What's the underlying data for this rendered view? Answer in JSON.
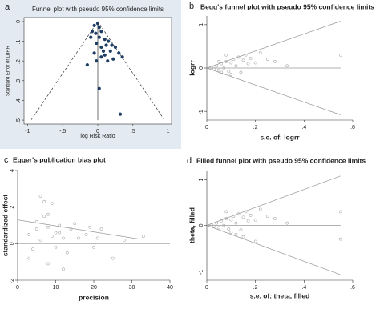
{
  "chart_data": [
    {
      "type": "scatter",
      "panel": "a",
      "title": "Funnel plot with pseudo 95% confidence limits",
      "x_label": "log Risk Ratio",
      "y_label": "Standard Error of LnRR",
      "color": "#1f3d63",
      "filled": true,
      "frame": true,
      "xlim": [
        -1.05,
        1.05
      ],
      "ylim": [
        0.52,
        -0.02
      ],
      "xticks": [
        -1,
        {
          "value": -0.5,
          "label": "-.5"
        },
        0,
        {
          "value": 0.5,
          "label": ".5"
        },
        1
      ],
      "yticks": [
        0,
        {
          "value": 0.1,
          "label": ".1"
        },
        {
          "value": 0.2,
          "label": ".2"
        },
        {
          "value": 0.3,
          "label": ".3"
        },
        {
          "value": 0.4,
          "label": ".4"
        },
        {
          "value": 0.5,
          "label": ".5"
        }
      ],
      "x": [
        -0.05,
        0,
        0.02,
        -0.08,
        -0.03,
        0.05,
        -0.1,
        0.02,
        0.1,
        0.15,
        0.12,
        0.2,
        0.25,
        -0.02,
        0.05,
        0.08,
        0.18,
        0.3,
        0.35,
        0.05,
        0.1,
        -0.15,
        0.22,
        -0.05,
        0.02,
        0.32,
        -0.02,
        0.14
      ],
      "y": [
        0.02,
        0.01,
        0.03,
        0.05,
        0.06,
        0.05,
        0.08,
        0.08,
        0.09,
        0.1,
        0.12,
        0.12,
        0.13,
        0.11,
        0.13,
        0.15,
        0.15,
        0.16,
        0.18,
        0.18,
        0.17,
        0.22,
        0.19,
        0.16,
        0.34,
        0.47,
        0.2,
        0.2
      ],
      "lines": [
        {
          "x": [
            0,
            -0.95
          ],
          "y": [
            0,
            0.5
          ],
          "dash": true
        },
        {
          "x": [
            0,
            0.95
          ],
          "y": [
            0,
            0.5
          ],
          "dash": true
        },
        {
          "x": [
            0,
            0
          ],
          "y": [
            0,
            0.5
          ],
          "dash": false
        }
      ]
    },
    {
      "type": "scatter",
      "panel": "b",
      "title": "Begg's funnel plot with pseudo 95% confidence limits",
      "x_label": "s.e. of: logrr",
      "y_label": "logrr",
      "color": "#aaaaaa",
      "filled": false,
      "frame": false,
      "xlim": [
        0,
        0.6
      ],
      "ylim": [
        -1.2,
        1.2
      ],
      "xticks": [
        0,
        {
          "value": 0.2,
          "label": ".2"
        },
        {
          "value": 0.4,
          "label": ".4"
        },
        {
          "value": 0.6,
          "label": ".6"
        }
      ],
      "yticks": [
        -1,
        0,
        1
      ],
      "x": [
        0.02,
        0.03,
        0.04,
        0.05,
        0.06,
        0.07,
        0.08,
        0.09,
        0.1,
        0.11,
        0.12,
        0.13,
        0.14,
        0.15,
        0.16,
        0.17,
        0.18,
        0.2,
        0.22,
        0.25,
        0.28,
        0.33,
        0.08,
        0.1,
        0.55,
        0.05,
        0.06
      ],
      "y": [
        0.02,
        -0.02,
        0.05,
        -0.05,
        0.1,
        0,
        0.15,
        -0.08,
        0.12,
        0.2,
        0.05,
        0.25,
        -0.1,
        0.18,
        0.3,
        0.1,
        0.22,
        0.12,
        0.35,
        0.2,
        0.15,
        0.05,
        0.3,
        -0.15,
        0.3,
        0.15,
        -0.1
      ],
      "lines": [
        {
          "x": [
            0,
            0.55
          ],
          "y": [
            0,
            1.08
          ],
          "dash": false
        },
        {
          "x": [
            0,
            0.55
          ],
          "y": [
            0,
            -1.08
          ],
          "dash": false
        },
        {
          "x": [
            0,
            0.55
          ],
          "y": [
            0,
            0
          ],
          "dash": false
        }
      ]
    },
    {
      "type": "scatter",
      "panel": "c",
      "title": "Egger's publication bias plot",
      "x_label": "precision",
      "y_label": "standardized effect",
      "color": "#aaaaaa",
      "filled": false,
      "frame": false,
      "xlim": [
        0,
        40
      ],
      "ylim": [
        -2,
        4
      ],
      "xticks": [
        0,
        10,
        20,
        30,
        40
      ],
      "yticks": [
        -2,
        0,
        2,
        4
      ],
      "x": [
        3,
        4,
        5,
        5,
        6,
        6,
        7,
        7,
        8,
        8,
        9,
        9,
        10,
        10,
        11,
        11,
        12,
        13,
        14,
        15,
        16,
        18,
        19,
        20,
        21,
        22,
        25,
        28,
        33,
        3,
        8,
        12
      ],
      "y": [
        0.5,
        -0.3,
        0.8,
        1.2,
        2.6,
        0.2,
        2.3,
        1.5,
        1.6,
        0.9,
        2.2,
        0.4,
        0.6,
        -0.2,
        1,
        0.6,
        0.3,
        -0.5,
        0.8,
        1.1,
        0.3,
        0.5,
        0.9,
        -0.2,
        0.3,
        0.8,
        -0.8,
        0.2,
        0.4,
        -0.8,
        -1.1,
        -1.4
      ],
      "lines": [
        {
          "x": [
            0,
            32
          ],
          "y": [
            1.3,
            0.25
          ],
          "dash": false
        },
        {
          "x": [
            0,
            40
          ],
          "y": [
            0,
            0
          ],
          "dash": false
        }
      ]
    },
    {
      "type": "scatter",
      "panel": "d",
      "title": "Filled funnel plot with pseudo 95% confidence limits",
      "x_label": "s.e. of: theta, filled",
      "y_label": "theta, filled",
      "color": "#aaaaaa",
      "filled": false,
      "frame": false,
      "xlim": [
        0,
        0.6
      ],
      "ylim": [
        -1.2,
        1.2
      ],
      "xticks": [
        0,
        {
          "value": 0.2,
          "label": ".2"
        },
        {
          "value": 0.4,
          "label": ".4"
        },
        {
          "value": 0.6,
          "label": ".6"
        }
      ],
      "yticks": [
        -1,
        0,
        1
      ],
      "x": [
        0.02,
        0.03,
        0.04,
        0.05,
        0.06,
        0.07,
        0.08,
        0.09,
        0.1,
        0.11,
        0.12,
        0.13,
        0.14,
        0.15,
        0.16,
        0.17,
        0.18,
        0.2,
        0.22,
        0.25,
        0.28,
        0.33,
        0.08,
        0.1,
        0.55,
        0.55,
        0.12,
        0.15,
        0.2
      ],
      "y": [
        0.02,
        -0.02,
        0.05,
        -0.05,
        0.1,
        0,
        0.15,
        -0.08,
        0.12,
        0.2,
        0.05,
        0.25,
        -0.1,
        0.18,
        0.3,
        0.1,
        0.22,
        0.12,
        0.35,
        0.2,
        0.15,
        0.05,
        0.3,
        -0.15,
        0.3,
        -0.3,
        -0.2,
        -0.25,
        -0.35
      ],
      "lines": [
        {
          "x": [
            0,
            0.55
          ],
          "y": [
            0,
            1.08
          ],
          "dash": false
        },
        {
          "x": [
            0,
            0.55
          ],
          "y": [
            0,
            -1.08
          ],
          "dash": false
        },
        {
          "x": [
            0,
            0.55
          ],
          "y": [
            0,
            0
          ],
          "dash": false
        }
      ]
    }
  ]
}
